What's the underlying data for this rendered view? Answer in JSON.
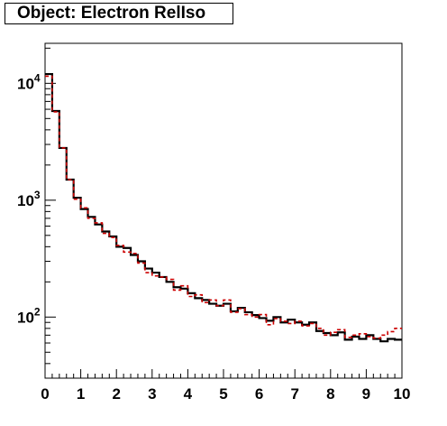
{
  "chart_data": {
    "type": "line",
    "title": "Object: Electron RelIso",
    "xlabel": "",
    "ylabel": "",
    "xlim": [
      0,
      10
    ],
    "ylim": [
      30,
      22000
    ],
    "y_scale": "log",
    "grid": false,
    "legend": "none",
    "x_ticks": [
      "0",
      "1",
      "2",
      "3",
      "4",
      "5",
      "6",
      "7",
      "8",
      "9",
      "10"
    ],
    "y_ticks": [
      {
        "value": 100,
        "base": "10",
        "exp": "2"
      },
      {
        "value": 1000,
        "base": "10",
        "exp": "3"
      },
      {
        "value": 10000,
        "base": "10",
        "exp": "4"
      }
    ],
    "bin_edges_start": 0,
    "bin_width": 0.2,
    "series": [
      {
        "style": "solid",
        "color": "#000000",
        "values": [
          12000,
          5800,
          2800,
          1500,
          1050,
          840,
          720,
          620,
          540,
          490,
          400,
          390,
          340,
          300,
          260,
          240,
          220,
          200,
          180,
          175,
          160,
          145,
          140,
          130,
          125,
          130,
          112,
          120,
          110,
          104,
          98,
          93,
          100,
          90,
          95,
          90,
          86,
          90,
          76,
          73,
          70,
          74,
          64,
          68,
          65,
          70,
          65,
          62,
          65,
          64
        ]
      },
      {
        "style": "dashed",
        "color": "#cc0000",
        "values": [
          11500,
          5700,
          2800,
          1500,
          1020,
          860,
          700,
          640,
          520,
          480,
          410,
          360,
          350,
          290,
          240,
          225,
          220,
          210,
          170,
          185,
          150,
          155,
          133,
          140,
          125,
          140,
          110,
          118,
          105,
          100,
          105,
          86,
          97,
          92,
          88,
          92,
          84,
          88,
          80,
          70,
          74,
          78,
          67,
          70,
          72,
          68,
          66,
          70,
          75,
          80
        ]
      }
    ]
  }
}
